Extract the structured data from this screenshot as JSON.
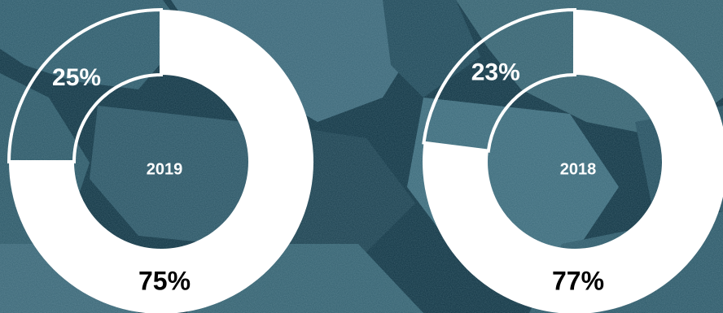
{
  "colors": {
    "background": "#0f3342",
    "rock_light": "#3f6f80",
    "ring_fill": "#ffffff",
    "ring_stroke": "#ffffff",
    "center_text": "#ffffff",
    "outer_text_dark": "#000000",
    "outer_text_light": "#ffffff"
  },
  "chart_data": [
    {
      "type": "pie",
      "title": "",
      "center_label": "2019",
      "slices": [
        {
          "label": "75%",
          "value": 75,
          "style": "filled"
        },
        {
          "label": "25%",
          "value": 25,
          "style": "outline"
        }
      ]
    },
    {
      "type": "pie",
      "title": "",
      "center_label": "2018",
      "slices": [
        {
          "label": "77%",
          "value": 77,
          "style": "filled"
        },
        {
          "label": "23%",
          "value": 23,
          "style": "outline"
        }
      ]
    }
  ]
}
